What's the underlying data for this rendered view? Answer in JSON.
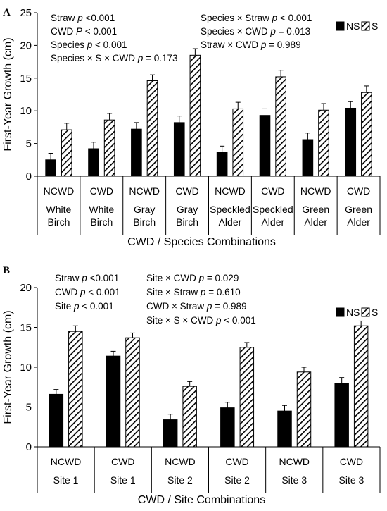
{
  "colors": {
    "ns": "#000000",
    "s_hatch": "#000000",
    "axis": "#000000"
  },
  "chart_data": [
    {
      "type": "bar",
      "panel_label": "A",
      "ylabel": "First-Year Growth (cm)",
      "xlabel": "CWD / Species Combinations",
      "ylim": [
        0,
        25
      ],
      "yticks": [
        "0",
        "5",
        "10",
        "15",
        "20",
        "25"
      ],
      "categories": [
        {
          "treatment": "NCWD",
          "species": "White Birch"
        },
        {
          "treatment": "CWD",
          "species": "White Birch"
        },
        {
          "treatment": "NCWD",
          "species": "Gray Birch"
        },
        {
          "treatment": "CWD",
          "species": "Gray Birch"
        },
        {
          "treatment": "NCWD",
          "species": "Speckled Alder"
        },
        {
          "treatment": "CWD",
          "species": "Speckled Alder"
        },
        {
          "treatment": "NCWD",
          "species": "Green Alder"
        },
        {
          "treatment": "CWD",
          "species": "Green Alder"
        }
      ],
      "series": [
        {
          "name": "NS",
          "values": [
            2.5,
            4.2,
            7.2,
            8.2,
            3.7,
            9.3,
            5.6,
            10.4
          ],
          "errors": [
            1.0,
            1.0,
            1.0,
            1.0,
            0.9,
            1.0,
            1.0,
            1.0
          ]
        },
        {
          "name": "S",
          "values": [
            7.1,
            8.6,
            14.6,
            18.5,
            10.3,
            15.2,
            10.1,
            12.8
          ],
          "errors": [
            1.0,
            1.0,
            0.9,
            1.0,
            1.0,
            1.0,
            1.0,
            1.0
          ]
        }
      ],
      "annotations_left": [
        "Straw p  <0.001",
        "CWD P < 0.001",
        "Species p < 0.001",
        "Species × S × CWD p = 0.173"
      ],
      "annotations_right": [
        "Species × Straw p < 0.001",
        "Species × CWD p = 0.013",
        "Straw × CWD p = 0.989"
      ],
      "legend": [
        "NS",
        "S"
      ]
    },
    {
      "type": "bar",
      "panel_label": "B",
      "ylabel": "First-Year Growth (cm)",
      "xlabel": "CWD / Site Combinations",
      "ylim": [
        0,
        20
      ],
      "yticks": [
        "0",
        "5",
        "10",
        "15",
        "20"
      ],
      "categories": [
        {
          "treatment": "NCWD",
          "site": "Site 1"
        },
        {
          "treatment": "CWD",
          "site": "Site 1"
        },
        {
          "treatment": "NCWD",
          "site": "Site 2"
        },
        {
          "treatment": "CWD",
          "site": "Site 2"
        },
        {
          "treatment": "NCWD",
          "site": "Site 3"
        },
        {
          "treatment": "CWD",
          "site": "Site 3"
        }
      ],
      "series": [
        {
          "name": "NS",
          "values": [
            6.6,
            11.4,
            3.4,
            4.9,
            4.5,
            8.0
          ],
          "errors": [
            0.6,
            0.6,
            0.7,
            0.7,
            0.7,
            0.7
          ]
        },
        {
          "name": "S",
          "values": [
            14.5,
            13.7,
            7.6,
            12.5,
            9.4,
            15.2
          ],
          "errors": [
            0.7,
            0.6,
            0.6,
            0.6,
            0.6,
            0.6
          ]
        }
      ],
      "annotations_left": [
        "Straw p  <0.001",
        "CWD p < 0.001",
        "Site p < 0.001"
      ],
      "annotations_right": [
        "Site × CWD p = 0.029",
        "Site × Straw p = 0.610",
        "CWD × Straw p = 0.989",
        "Site × S × CWD p < 0.001"
      ],
      "legend": [
        "NS",
        "S"
      ]
    }
  ]
}
